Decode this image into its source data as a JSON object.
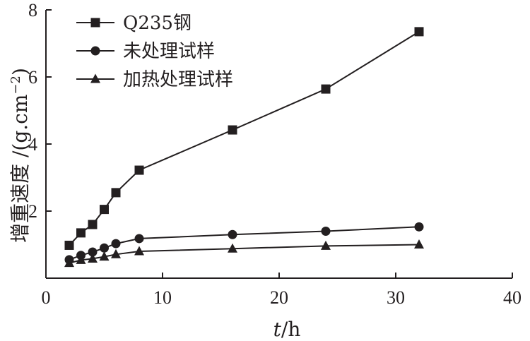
{
  "chart_data": {
    "type": "line",
    "xlabel_italic": "t",
    "xlabel_unit": "/h",
    "ylabel": "增重速度 /(g.cm",
    "ylabel_sup": "−2",
    "ylabel_close": ")",
    "xlim": [
      0,
      40
    ],
    "ylim": [
      0,
      8
    ],
    "xticks": [
      0,
      10,
      20,
      30,
      40
    ],
    "yticks": [
      2,
      4,
      6,
      8
    ],
    "xtick_labels": [
      "0",
      "10",
      "20",
      "30",
      "40"
    ],
    "ytick_labels": [
      "2",
      "4",
      "6",
      "8"
    ],
    "grid": false,
    "legend_position": "top-left",
    "series": [
      {
        "name": "Q235钢",
        "marker": "square",
        "x": [
          2,
          3,
          4,
          5,
          6,
          8,
          16,
          24,
          32
        ],
        "y": [
          0.98,
          1.35,
          1.6,
          2.05,
          2.55,
          3.22,
          4.42,
          5.64,
          7.35
        ]
      },
      {
        "name": "未处理试样",
        "marker": "circle",
        "x": [
          2,
          3,
          4,
          5,
          6,
          8,
          16,
          24,
          32
        ],
        "y": [
          0.55,
          0.68,
          0.78,
          0.9,
          1.03,
          1.18,
          1.3,
          1.4,
          1.53
        ]
      },
      {
        "name": "加热处理试样",
        "marker": "triangle",
        "x": [
          2,
          3,
          4,
          5,
          6,
          8,
          16,
          24,
          32
        ],
        "y": [
          0.45,
          0.54,
          0.58,
          0.64,
          0.71,
          0.8,
          0.88,
          0.96,
          1.0
        ]
      }
    ]
  }
}
